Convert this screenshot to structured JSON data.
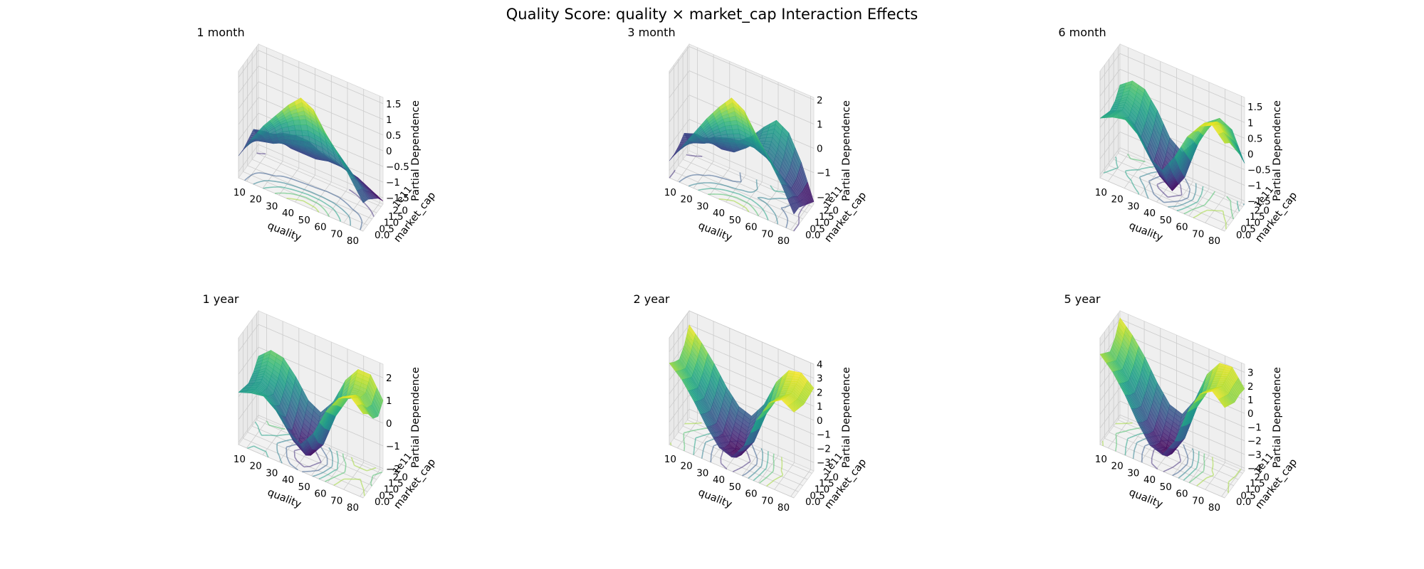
{
  "title": "Quality Score: quality × market_cap Interaction Effects",
  "chart_data": [
    {
      "type": "surface",
      "title": "1 month",
      "xlabel": "quality",
      "ylabel": "market_cap",
      "yoffset": "1e11",
      "zlabel": "Partial Dependence",
      "xlim": [
        5,
        82
      ],
      "ylim": [
        0,
        2.2
      ],
      "zlim": [
        -1.7,
        1.7
      ],
      "xticks": [
        10,
        20,
        30,
        40,
        50,
        60,
        70,
        80
      ],
      "yticks": [
        0.0,
        0.5,
        1.0,
        1.5,
        2.0
      ],
      "zticks": [
        -1.5,
        -1.0,
        -0.5,
        0.0,
        0.5,
        1.0,
        1.5
      ],
      "z_grid": [
        [
          -1.0,
          -0.3,
          0.3,
          0.8,
          1.3,
          1.7,
          1.5,
          0.9,
          0.4,
          -0.2,
          -0.8
        ],
        [
          -1.0,
          -0.5,
          -0.1,
          0.3,
          0.6,
          0.8,
          0.7,
          0.4,
          0.0,
          -0.4,
          -0.9
        ],
        [
          -0.9,
          -0.8,
          -0.7,
          -0.5,
          -0.4,
          -0.3,
          -0.3,
          -0.4,
          -0.6,
          -0.8,
          -1.1
        ],
        [
          -0.8,
          -0.7,
          -0.8,
          -0.9,
          -0.9,
          -0.9,
          -0.8,
          -0.8,
          -0.9,
          -1.1,
          -1.3
        ],
        [
          -1.3,
          -1.0,
          -0.8,
          -0.7,
          -0.7,
          -0.9,
          -1.0,
          -1.1,
          -1.2,
          -1.4,
          -1.6
        ]
      ]
    },
    {
      "type": "surface",
      "title": "3 month",
      "xlabel": "quality",
      "ylabel": "market_cap",
      "yoffset": "1e11",
      "zlabel": "Partial Dependence",
      "xlim": [
        5,
        82
      ],
      "ylim": [
        0,
        2.2
      ],
      "zlim": [
        -2.3,
        2.1
      ],
      "xticks": [
        10,
        20,
        30,
        40,
        50,
        60,
        70,
        80
      ],
      "yticks": [
        0.0,
        0.5,
        1.0,
        1.5,
        2.0
      ],
      "zticks": [
        -2,
        -1,
        0,
        1,
        2
      ],
      "z_grid": [
        [
          -1.6,
          -0.8,
          0.0,
          0.8,
          1.5,
          2.1,
          1.8,
          1.0,
          0.2,
          -0.6,
          -1.6
        ],
        [
          -1.6,
          -1.0,
          -0.5,
          0.1,
          0.6,
          0.9,
          0.8,
          0.3,
          -0.3,
          -0.9,
          -1.6
        ],
        [
          -1.5,
          -1.2,
          -1.0,
          -0.7,
          -0.5,
          -0.3,
          -0.3,
          -0.5,
          -0.9,
          -1.3,
          -1.8
        ],
        [
          -1.3,
          -1.1,
          -1.2,
          -1.3,
          -1.2,
          -0.8,
          -0.3,
          -0.1,
          -0.5,
          -1.2,
          -2.0
        ],
        [
          -2.0,
          -1.6,
          -1.3,
          -1.1,
          -1.0,
          -0.6,
          0.0,
          0.5,
          0.2,
          -0.8,
          -2.2
        ]
      ]
    },
    {
      "type": "surface",
      "title": "6 month",
      "xlabel": "quality",
      "ylabel": "market_cap",
      "yoffset": "1e11",
      "zlabel": "Partial Dependence",
      "xlim": [
        5,
        82
      ],
      "ylim": [
        0,
        2.2
      ],
      "zlim": [
        -1.6,
        1.8
      ],
      "xticks": [
        10,
        20,
        30,
        40,
        50,
        60,
        70,
        80
      ],
      "yticks": [
        0.0,
        0.5,
        1.0,
        1.5,
        2.0
      ],
      "zticks": [
        -1.5,
        -1.0,
        -0.5,
        0.0,
        0.5,
        1.0,
        1.5
      ],
      "z_grid": [
        [
          0.3,
          0.5,
          0.6,
          0.3,
          -0.3,
          -0.5,
          0.1,
          0.9,
          1.4,
          1.6,
          1.2
        ],
        [
          0.2,
          0.4,
          0.3,
          -0.1,
          -0.8,
          -1.1,
          -0.5,
          0.6,
          1.3,
          1.5,
          1.0
        ],
        [
          0.1,
          0.3,
          0.0,
          -0.6,
          -1.3,
          -1.6,
          -1.0,
          0.2,
          1.0,
          1.2,
          0.6
        ],
        [
          0.2,
          0.5,
          0.3,
          -0.3,
          -1.0,
          -1.3,
          -0.7,
          0.3,
          0.9,
          0.9,
          0.2
        ],
        [
          0.5,
          0.8,
          0.7,
          0.2,
          -0.5,
          -0.8,
          -0.3,
          0.5,
          0.8,
          0.6,
          -0.3
        ]
      ]
    },
    {
      "type": "surface",
      "title": "1 year",
      "xlabel": "quality",
      "ylabel": "market_cap",
      "yoffset": "1e11",
      "zlabel": "Partial Dependence",
      "xlim": [
        5,
        82
      ],
      "ylim": [
        0,
        2.2
      ],
      "zlim": [
        -2.1,
        2.6
      ],
      "xticks": [
        10,
        20,
        30,
        40,
        50,
        60,
        70,
        80
      ],
      "yticks": [
        0.0,
        0.5,
        1.0,
        1.5,
        2.0
      ],
      "zticks": [
        -2,
        -1,
        0,
        1,
        2
      ],
      "z_grid": [
        [
          0.2,
          0.4,
          0.5,
          0.1,
          -0.6,
          -0.9,
          -0.2,
          1.0,
          1.8,
          2.1,
          1.6
        ],
        [
          0.1,
          0.3,
          0.2,
          -0.4,
          -1.3,
          -1.7,
          -0.9,
          0.6,
          1.6,
          1.9,
          1.3
        ],
        [
          0.0,
          0.3,
          0.0,
          -0.8,
          -1.7,
          -2.0,
          -1.3,
          0.2,
          1.2,
          1.5,
          0.8
        ],
        [
          0.2,
          0.6,
          0.4,
          -0.3,
          -1.1,
          -1.4,
          -0.7,
          0.6,
          1.4,
          1.4,
          0.6
        ],
        [
          0.6,
          1.1,
          1.0,
          0.4,
          -0.4,
          -0.7,
          0.0,
          1.2,
          1.9,
          1.9,
          1.0
        ]
      ]
    },
    {
      "type": "surface",
      "title": "2 year",
      "xlabel": "quality",
      "ylabel": "market_cap",
      "yoffset": "1e11",
      "zlabel": "Partial Dependence",
      "xlim": [
        5,
        82
      ],
      "ylim": [
        0,
        2.2
      ],
      "zlim": [
        -3.6,
        4.0
      ],
      "xticks": [
        10,
        20,
        30,
        40,
        50,
        60,
        70,
        80
      ],
      "yticks": [
        0.0,
        0.5,
        1.0,
        1.5,
        2.0
      ],
      "zticks": [
        -3,
        -2,
        -1,
        0,
        1,
        2,
        3,
        4
      ],
      "z_grid": [
        [
          2.2,
          1.4,
          0.2,
          -1.2,
          -2.3,
          -2.6,
          -1.4,
          0.8,
          2.4,
          3.0,
          2.5
        ],
        [
          1.8,
          1.0,
          -0.2,
          -1.6,
          -2.8,
          -3.1,
          -1.8,
          0.5,
          2.1,
          2.7,
          2.3
        ],
        [
          1.5,
          0.6,
          -0.5,
          -1.9,
          -3.0,
          -3.4,
          -2.1,
          0.3,
          1.9,
          2.5,
          2.1
        ],
        [
          2.0,
          1.2,
          0.1,
          -1.2,
          -2.2,
          -2.5,
          -1.3,
          0.9,
          2.3,
          2.7,
          2.2
        ],
        [
          3.0,
          2.1,
          1.0,
          -0.3,
          -1.3,
          -1.6,
          -0.4,
          1.6,
          2.8,
          3.0,
          2.3
        ]
      ]
    },
    {
      "type": "surface",
      "title": "5 year",
      "xlabel": "quality",
      "ylabel": "market_cap",
      "yoffset": "1e11",
      "zlabel": "Partial Dependence",
      "xlim": [
        5,
        82
      ],
      "ylim": [
        0,
        2.2
      ],
      "zlim": [
        -4.2,
        3.6
      ],
      "xticks": [
        10,
        20,
        30,
        40,
        50,
        60,
        70,
        80
      ],
      "yticks": [
        0.0,
        0.5,
        1.0,
        1.5,
        2.0
      ],
      "zticks": [
        -4,
        -3,
        -2,
        -1,
        0,
        1,
        2,
        3
      ],
      "z_grid": [
        [
          2.4,
          1.5,
          0.2,
          -1.4,
          -2.7,
          -3.0,
          -1.6,
          0.9,
          2.6,
          3.2,
          2.4
        ],
        [
          2.0,
          1.1,
          -0.3,
          -1.9,
          -3.2,
          -3.6,
          -2.1,
          0.6,
          2.3,
          2.9,
          2.1
        ],
        [
          1.6,
          0.7,
          -0.6,
          -2.2,
          -3.5,
          -3.9,
          -2.4,
          0.3,
          2.0,
          2.6,
          1.8
        ],
        [
          2.1,
          1.3,
          0.0,
          -1.5,
          -2.7,
          -3.0,
          -1.6,
          0.9,
          2.4,
          2.8,
          1.9
        ],
        [
          3.1,
          2.2,
          1.0,
          -0.5,
          -1.7,
          -2.0,
          -0.6,
          1.7,
          2.9,
          3.0,
          1.8
        ]
      ]
    }
  ]
}
